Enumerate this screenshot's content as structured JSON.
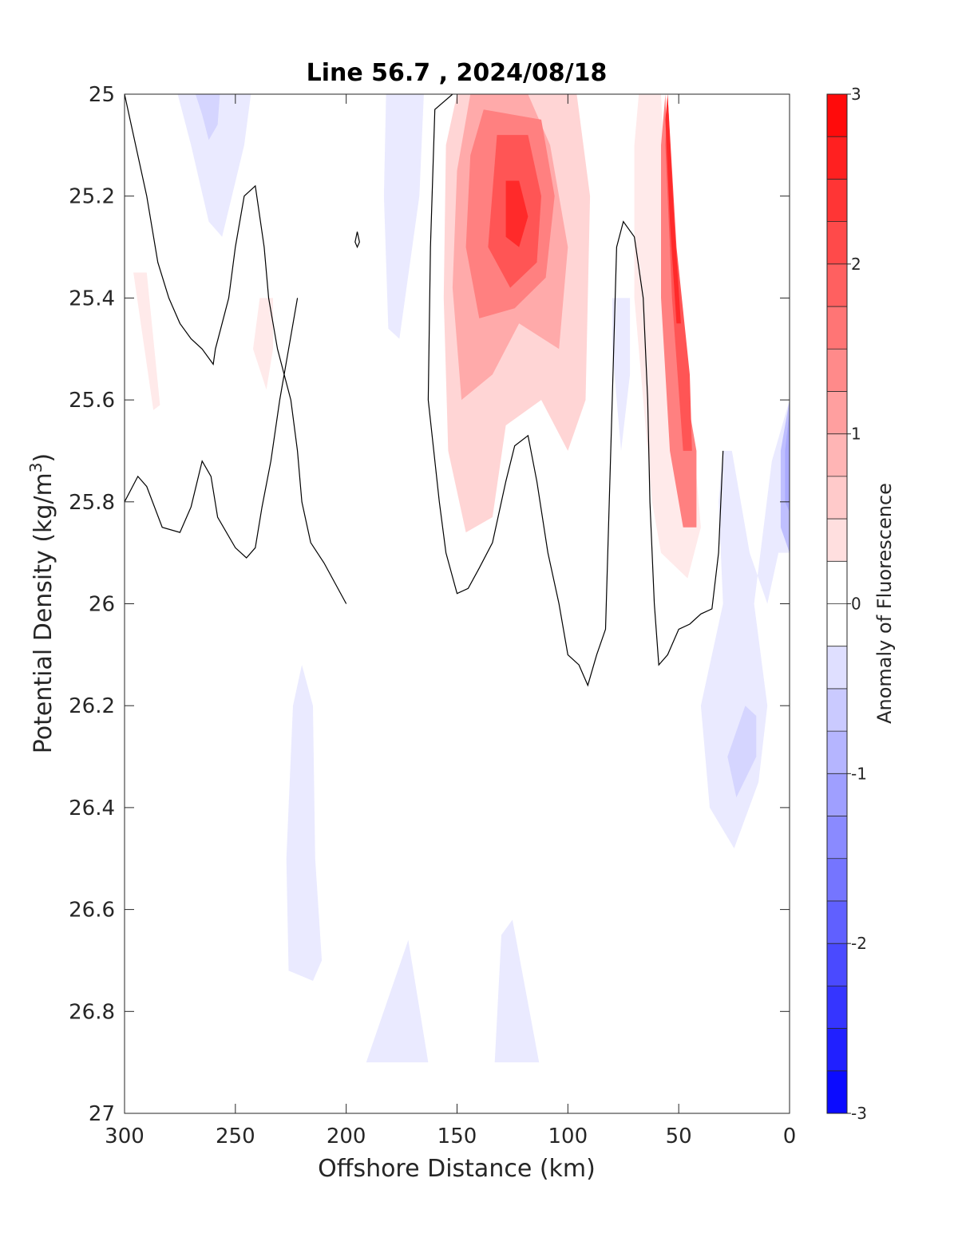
{
  "chart_data": {
    "type": "contour",
    "title": "Line 56.7 , 2024/08/18",
    "xlabel": "Offshore Distance (km)",
    "ylabel": "Potential Density (kg/m",
    "ylabel_sup": "3",
    "ylabel_close": ")",
    "xlim": [
      300,
      0
    ],
    "ylim": [
      25,
      27
    ],
    "x_ticks": [
      300,
      250,
      200,
      150,
      100,
      50,
      0
    ],
    "y_ticks": [
      25,
      25.2,
      25.4,
      25.6,
      25.8,
      26,
      26.2,
      26.4,
      26.6,
      26.8,
      27
    ],
    "y_tick_labels": [
      "25",
      "25.2",
      "25.4",
      "25.6",
      "25.8",
      "26",
      "26.2",
      "26.4",
      "26.6",
      "26.8",
      "27"
    ],
    "colorbar": {
      "label": "Anomaly of Fluorescence",
      "range": [
        -3,
        3
      ],
      "ticks": [
        -3,
        -2,
        -1,
        0,
        1,
        2,
        3
      ],
      "levels": 24,
      "colormap": "blue-white-red"
    },
    "positive_regions": [
      {
        "name": "core 150-100 km",
        "level": 2.5,
        "polygon": [
          [
            128,
            25.17
          ],
          [
            122,
            25.17
          ],
          [
            118,
            25.24
          ],
          [
            122,
            25.3
          ],
          [
            128,
            25.28
          ]
        ]
      },
      {
        "name": "core 150-100 km",
        "level": 2.0,
        "polygon": [
          [
            132,
            25.08
          ],
          [
            118,
            25.08
          ],
          [
            112,
            25.2
          ],
          [
            114,
            25.33
          ],
          [
            126,
            25.38
          ],
          [
            136,
            25.3
          ]
        ]
      },
      {
        "name": "core 150-100 km",
        "level": 1.5,
        "polygon": [
          [
            138,
            25.03
          ],
          [
            112,
            25.05
          ],
          [
            106,
            25.2
          ],
          [
            110,
            25.36
          ],
          [
            124,
            25.42
          ],
          [
            140,
            25.44
          ],
          [
            146,
            25.3
          ],
          [
            144,
            25.12
          ]
        ]
      },
      {
        "name": "core 150-100 km",
        "level": 1.0,
        "polygon": [
          [
            144,
            25.0
          ],
          [
            118,
            25.0
          ],
          [
            108,
            25.1
          ],
          [
            100,
            25.3
          ],
          [
            104,
            25.5
          ],
          [
            122,
            25.45
          ],
          [
            134,
            25.55
          ],
          [
            148,
            25.6
          ],
          [
            152,
            25.38
          ],
          [
            150,
            25.15
          ]
        ]
      },
      {
        "name": "core 150-100 km",
        "level": 0.5,
        "polygon": [
          [
            150,
            25.0
          ],
          [
            96,
            25.0
          ],
          [
            90,
            25.2
          ],
          [
            92,
            25.6
          ],
          [
            100,
            25.7
          ],
          [
            112,
            25.6
          ],
          [
            128,
            25.65
          ],
          [
            134,
            25.83
          ],
          [
            146,
            25.86
          ],
          [
            154,
            25.7
          ],
          [
            156,
            25.4
          ],
          [
            155,
            25.1
          ]
        ]
      },
      {
        "name": "near-shore band",
        "level": 0.25,
        "polygon": [
          [
            68,
            25.0
          ],
          [
            58,
            25.0
          ],
          [
            56,
            25.2
          ],
          [
            56,
            25.5
          ],
          [
            44,
            25.65
          ],
          [
            40,
            25.85
          ],
          [
            46,
            25.95
          ],
          [
            58,
            25.9
          ],
          [
            62,
            25.8
          ],
          [
            66,
            25.6
          ],
          [
            70,
            25.4
          ],
          [
            70,
            25.1
          ]
        ]
      },
      {
        "name": "near-shore band",
        "level": 1.5,
        "polygon": [
          [
            56,
            25.0
          ],
          [
            54,
            25.3
          ],
          [
            48,
            25.55
          ],
          [
            42,
            25.7
          ],
          [
            42,
            25.85
          ],
          [
            48,
            25.85
          ],
          [
            54,
            25.7
          ],
          [
            58,
            25.4
          ],
          [
            58,
            25.1
          ]
        ]
      },
      {
        "name": "near-shore band",
        "level": 2.0,
        "polygon": [
          [
            55,
            25.0
          ],
          [
            51,
            25.3
          ],
          [
            45,
            25.55
          ],
          [
            44,
            25.7
          ],
          [
            48,
            25.7
          ],
          [
            53,
            25.4
          ],
          [
            56,
            25.1
          ]
        ]
      },
      {
        "name": "near-shore band",
        "level": 2.5,
        "polygon": [
          [
            55,
            25.0
          ],
          [
            52,
            25.25
          ],
          [
            49,
            25.45
          ],
          [
            51,
            25.45
          ],
          [
            54,
            25.25
          ],
          [
            56,
            25.05
          ]
        ]
      },
      {
        "name": "west patch",
        "level": 0.25,
        "polygon": [
          [
            296,
            25.35
          ],
          [
            290,
            25.35
          ],
          [
            284,
            25.61
          ],
          [
            287,
            25.62
          ]
        ]
      },
      {
        "name": "west patch",
        "level": 0.25,
        "polygon": [
          [
            239,
            25.4
          ],
          [
            233,
            25.4
          ],
          [
            233,
            25.5
          ],
          [
            236,
            25.58
          ],
          [
            242,
            25.5
          ]
        ]
      }
    ],
    "negative_regions": [
      {
        "level": -0.25,
        "polygon": [
          [
            279,
            25.0
          ],
          [
            243,
            25.0
          ],
          [
            246,
            25.1
          ],
          [
            256,
            25.28
          ],
          [
            262,
            25.25
          ],
          [
            270,
            25.1
          ],
          [
            276,
            25.0
          ]
        ]
      },
      {
        "level": -0.5,
        "polygon": [
          [
            268,
            25.0
          ],
          [
            257,
            25.0
          ],
          [
            258,
            25.06
          ],
          [
            262,
            25.09
          ],
          [
            265,
            25.04
          ]
        ]
      },
      {
        "level": -0.25,
        "polygon": [
          [
            182,
            25.0
          ],
          [
            165,
            25.0
          ],
          [
            167,
            25.2
          ],
          [
            176,
            25.48
          ],
          [
            181,
            25.46
          ],
          [
            183,
            25.2
          ]
        ]
      },
      {
        "level": -0.25,
        "polygon": [
          [
            80,
            25.4
          ],
          [
            72,
            25.4
          ],
          [
            72,
            25.55
          ],
          [
            76,
            25.7
          ],
          [
            80,
            25.5
          ]
        ]
      },
      {
        "level": -0.25,
        "polygon": [
          [
            220,
            26.12
          ],
          [
            215,
            26.2
          ],
          [
            214,
            26.5
          ],
          [
            211,
            26.7
          ],
          [
            215,
            26.74
          ],
          [
            226,
            26.72
          ],
          [
            227,
            26.5
          ],
          [
            224,
            26.2
          ]
        ]
      },
      {
        "level": -0.25,
        "polygon": [
          [
            172,
            26.66
          ],
          [
            163,
            26.9
          ],
          [
            191,
            26.9
          ]
        ]
      },
      {
        "level": -0.25,
        "polygon": [
          [
            125,
            26.62
          ],
          [
            113,
            26.9
          ],
          [
            133,
            26.9
          ],
          [
            130,
            26.65
          ]
        ]
      },
      {
        "level": -0.25,
        "polygon": [
          [
            30,
            25.7
          ],
          [
            26,
            25.7
          ],
          [
            18,
            25.9
          ],
          [
            10,
            26.0
          ],
          [
            5,
            25.9
          ],
          [
            0,
            25.9
          ],
          [
            0,
            25.6
          ],
          [
            8,
            25.72
          ],
          [
            16,
            26.0
          ],
          [
            10,
            26.2
          ],
          [
            14,
            26.35
          ],
          [
            25,
            26.48
          ],
          [
            36,
            26.4
          ],
          [
            40,
            26.2
          ],
          [
            30,
            26.0
          ],
          [
            32,
            25.8
          ]
        ]
      },
      {
        "level": -0.5,
        "polygon": [
          [
            20,
            26.2
          ],
          [
            15,
            26.22
          ],
          [
            15,
            26.3
          ],
          [
            24,
            26.38
          ],
          [
            28,
            26.3
          ]
        ]
      },
      {
        "level": -0.75,
        "polygon": [
          [
            0,
            25.6
          ],
          [
            4,
            25.7
          ],
          [
            4,
            25.85
          ],
          [
            0,
            25.9
          ]
        ]
      },
      {
        "level": -1.0,
        "polygon": [
          [
            0,
            25.62
          ],
          [
            2,
            25.7
          ],
          [
            2,
            25.8
          ],
          [
            0,
            25.82
          ]
        ]
      }
    ],
    "zero_contours": [
      [
        [
          300,
          25.0
        ],
        [
          295,
          25.1
        ],
        [
          290,
          25.2
        ],
        [
          285,
          25.33
        ],
        [
          280,
          25.4
        ],
        [
          275,
          25.45
        ],
        [
          270,
          25.48
        ],
        [
          265,
          25.5
        ],
        [
          260,
          25.53
        ],
        [
          259,
          25.5
        ],
        [
          256,
          25.45
        ],
        [
          253,
          25.4
        ],
        [
          250,
          25.3
        ],
        [
          246,
          25.2
        ],
        [
          241,
          25.18
        ],
        [
          237,
          25.3
        ],
        [
          235,
          25.4
        ],
        [
          231,
          25.5
        ],
        [
          225,
          25.6
        ],
        [
          222,
          25.7
        ],
        [
          220,
          25.8
        ],
        [
          216,
          25.88
        ],
        [
          210,
          25.92
        ],
        [
          200,
          26.0
        ]
      ],
      [
        [
          300,
          25.8
        ],
        [
          294,
          25.75
        ],
        [
          290,
          25.77
        ],
        [
          283,
          25.85
        ],
        [
          275,
          25.86
        ],
        [
          270,
          25.81
        ],
        [
          265,
          25.72
        ],
        [
          261,
          25.75
        ],
        [
          258,
          25.83
        ],
        [
          250,
          25.89
        ],
        [
          245,
          25.91
        ],
        [
          241,
          25.89
        ],
        [
          238,
          25.81
        ],
        [
          234,
          25.72
        ],
        [
          230,
          25.6
        ],
        [
          226,
          25.5
        ],
        [
          222,
          25.4
        ]
      ],
      [
        [
          152,
          25.0
        ],
        [
          160,
          25.03
        ],
        [
          162,
          25.3
        ],
        [
          163,
          25.6
        ],
        [
          158,
          25.8
        ],
        [
          155,
          25.9
        ],
        [
          150,
          25.98
        ],
        [
          145,
          25.97
        ],
        [
          140,
          25.93
        ],
        [
          134,
          25.88
        ],
        [
          128,
          25.76
        ],
        [
          124,
          25.69
        ],
        [
          118,
          25.67
        ],
        [
          114,
          25.76
        ],
        [
          109,
          25.9
        ],
        [
          104,
          26.0
        ],
        [
          100,
          26.1
        ],
        [
          95,
          26.12
        ],
        [
          91,
          26.16
        ],
        [
          87,
          26.1
        ],
        [
          83,
          26.05
        ],
        [
          82,
          25.9
        ],
        [
          80,
          25.6
        ],
        [
          78,
          25.3
        ],
        [
          75,
          25.25
        ],
        [
          70,
          25.28
        ],
        [
          66,
          25.4
        ],
        [
          64,
          25.6
        ],
        [
          63,
          25.8
        ],
        [
          61,
          26.0
        ],
        [
          59,
          26.12
        ],
        [
          55,
          26.1
        ],
        [
          50,
          26.05
        ],
        [
          45,
          26.04
        ],
        [
          40,
          26.02
        ],
        [
          35,
          26.01
        ],
        [
          32,
          25.9
        ],
        [
          30,
          25.7
        ]
      ]
    ],
    "small_contour": [
      [
        195,
        25.27
      ],
      [
        196,
        25.29
      ],
      [
        195,
        25.3
      ],
      [
        194,
        25.29
      ]
    ]
  }
}
